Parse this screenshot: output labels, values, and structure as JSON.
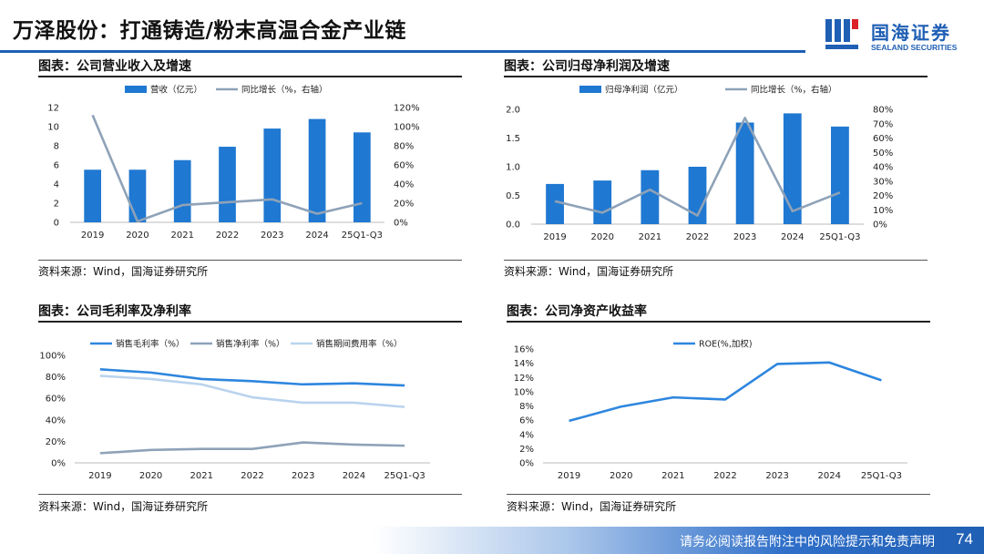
{
  "title": "万泽股份：打通铸造/粉末高温合金产业链",
  "logo": {
    "name": "国海证券",
    "name_en": "SEALAND SECURITIES"
  },
  "footer": {
    "disclaimer": "请务必阅读报告附注中的风险提示和免责声明",
    "page": "74"
  },
  "colors": {
    "brand": "#1f5fb4",
    "bar": "#1f78d1",
    "line_primary": "#2e86de",
    "line_gray": "#8ea2b8",
    "line_light": "#b9d3ee"
  },
  "chart_data": [
    {
      "id": "revenue",
      "type": "bar+line",
      "heading": "图表：公司营业收入及增速",
      "source": "资料来源：Wind，国海证券研究所",
      "categories": [
        "2019",
        "2020",
        "2021",
        "2022",
        "2023",
        "2024",
        "25Q1-Q3"
      ],
      "bar": {
        "name": "营收（亿元）",
        "values": [
          5.5,
          5.5,
          6.5,
          7.9,
          9.8,
          10.8,
          9.4
        ]
      },
      "line": {
        "name": "同比增长（%，右轴）",
        "values": [
          112,
          1,
          18,
          21,
          24,
          9,
          20
        ]
      },
      "y_left": {
        "min": 0,
        "max": 12,
        "ticks": [
          "0",
          "2",
          "4",
          "6",
          "8",
          "10",
          "12"
        ]
      },
      "y_right": {
        "min": 0,
        "max": 120,
        "ticks": [
          "0%",
          "20%",
          "40%",
          "60%",
          "80%",
          "100%",
          "120%"
        ]
      }
    },
    {
      "id": "profit",
      "type": "bar+line",
      "heading": "图表：公司归母净利润及增速",
      "source": "资料来源：Wind，国海证券研究所",
      "categories": [
        "2019",
        "2020",
        "2021",
        "2022",
        "2023",
        "2024",
        "25Q1-Q3"
      ],
      "bar": {
        "name": "归母净利润（亿元）",
        "values": [
          0.7,
          0.76,
          0.94,
          1.0,
          1.77,
          1.93,
          1.7
        ]
      },
      "line": {
        "name": "同比增长（%，右轴）",
        "values": [
          16,
          8,
          24,
          6,
          74,
          9,
          22
        ]
      },
      "y_left": {
        "min": 0,
        "max": 2,
        "ticks": [
          "0.0",
          "0.5",
          "1.0",
          "1.5",
          "2.0"
        ]
      },
      "y_right": {
        "min": 0,
        "max": 80,
        "ticks": [
          "0%",
          "10%",
          "20%",
          "30%",
          "40%",
          "50%",
          "60%",
          "70%",
          "80%"
        ]
      }
    },
    {
      "id": "margin",
      "type": "line",
      "heading": "图表：公司毛利率及净利率",
      "source": "资料来源：Wind，国海证券研究所",
      "categories": [
        "2019",
        "2020",
        "2021",
        "2022",
        "2023",
        "2024",
        "25Q1-Q3"
      ],
      "series": [
        {
          "name": "销售毛利率（%）",
          "values": [
            87,
            84,
            78,
            76,
            73,
            74,
            72
          ]
        },
        {
          "name": "销售净利率（%）",
          "values": [
            9,
            12,
            13,
            13,
            19,
            17,
            16
          ]
        },
        {
          "name": "销售期间费用率（%）",
          "values": [
            81,
            78,
            73,
            61,
            56,
            56,
            52
          ]
        }
      ],
      "y": {
        "min": 0,
        "max": 100,
        "ticks": [
          "0%",
          "20%",
          "40%",
          "60%",
          "80%",
          "100%"
        ]
      }
    },
    {
      "id": "roe",
      "type": "line",
      "heading": "图表：公司净资产收益率",
      "source": "资料来源：Wind，国海证券研究所",
      "categories": [
        "2019",
        "2020",
        "2021",
        "2022",
        "2023",
        "2024",
        "25Q1-Q3"
      ],
      "series": [
        {
          "name": "ROE(%,加权)",
          "values": [
            5.9,
            7.9,
            9.2,
            8.9,
            13.9,
            14.1,
            11.6
          ]
        }
      ],
      "y": {
        "min": 0,
        "max": 16,
        "ticks": [
          "0%",
          "2%",
          "4%",
          "6%",
          "8%",
          "10%",
          "12%",
          "14%",
          "16%"
        ]
      }
    }
  ]
}
